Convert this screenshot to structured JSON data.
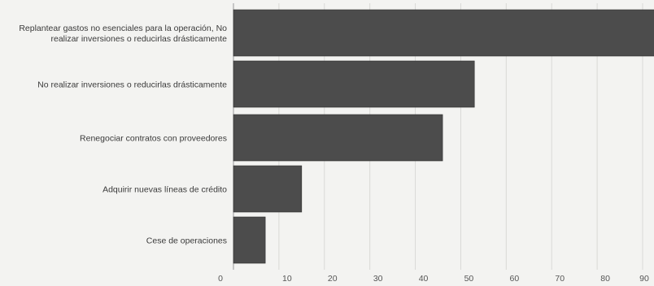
{
  "chart_data": {
    "type": "bar",
    "orientation": "horizontal",
    "categories": [
      [
        "Replantear gastos no esenciales para la operación, No",
        "realizar inversiones o reducirlas drásticamente"
      ],
      [
        "No realizar inversiones o reducirlas drásticamente"
      ],
      [
        "Renegociar contratos con proveedores"
      ],
      [
        "Adquirir nuevas líneas de crédito"
      ],
      [
        "Cese de operaciones"
      ]
    ],
    "values": [
      94,
      53,
      46,
      15,
      7
    ],
    "xlim": [
      0,
      90
    ],
    "xticks": [
      0,
      10,
      20,
      30,
      40,
      50,
      60,
      70,
      80,
      90
    ],
    "title": "",
    "xlabel": "",
    "ylabel": "",
    "grid": true,
    "legend": "none",
    "colors": {
      "bar": "#4c4c4c",
      "grid": "#d9d9d6",
      "background": "#f3f3f1"
    }
  }
}
